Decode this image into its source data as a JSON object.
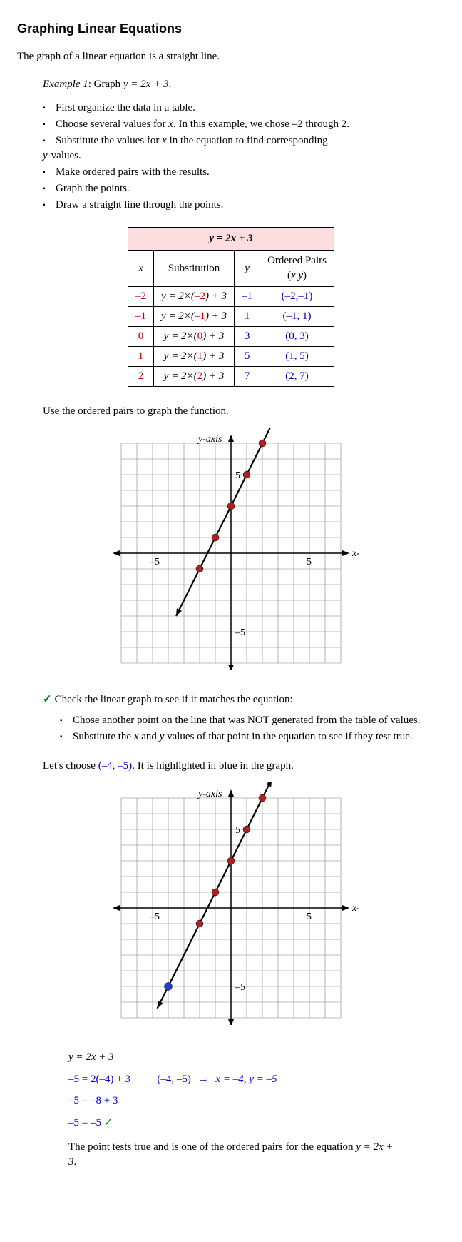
{
  "title": "Graphing Linear Equations",
  "intro": "The graph of a linear equation is a straight line.",
  "example": {
    "label": "Example 1",
    "text_prefix": ":  Graph ",
    "equation": "y = 2x + 3",
    "suffix": "."
  },
  "steps": [
    "First organize the data in a table.",
    "Choose several values for ",
    "Substitute the values for ",
    "Make ordered pairs with the results.",
    "Graph the points.",
    "Draw a straight line through the points."
  ],
  "step2_tail": ".  In this example, we chose –2 through 2.",
  "step3_mid": " in the equation to find corresponding ",
  "step3_tail": "-values.",
  "table": {
    "header_equation": "y = 2x + 3",
    "cols": [
      "x",
      "Substitution",
      "y",
      "Ordered Pairs",
      "(x y)"
    ],
    "rows": [
      {
        "x": "–2",
        "sub_pre": "y = 2×(",
        "sub_val": "–2",
        "sub_post": ") + 3",
        "y": "–1",
        "pair": "(–2,–1)"
      },
      {
        "x": "–1",
        "sub_pre": "y = 2×(",
        "sub_val": "–1",
        "sub_post": ") + 3",
        "y": "1",
        "pair": "(–1, 1)"
      },
      {
        "x": "0",
        "sub_pre": "y = 2×(",
        "sub_val": "0",
        "sub_post": ") + 3",
        "y": "3",
        "pair": "(0, 3)"
      },
      {
        "x": "1",
        "sub_pre": "y = 2×(",
        "sub_val": "1",
        "sub_post": ") + 3",
        "y": "5",
        "pair": "(1, 5)"
      },
      {
        "x": "2",
        "sub_pre": "y = 2×(",
        "sub_val": "2",
        "sub_post": ") + 3",
        "y": "7",
        "pair": "(2, 7)"
      }
    ]
  },
  "use_pairs_text": "Use the ordered pairs to graph the function.",
  "graph": {
    "xmin": -7,
    "xmax": 7,
    "ymin": -7,
    "ymax": 7,
    "cell": 22,
    "xlabel": "x-axis",
    "ylabel": "y-axis",
    "xtick_neg": "–5",
    "xtick_pos": "5",
    "ytick_neg": "–5",
    "ytick_pos": "5",
    "grid_color": "#808080",
    "axis_color": "#000000",
    "point_color": "#b02020",
    "line_color": "#000000",
    "extra_point_color": "#2040d0",
    "red_points": [
      [
        -2,
        -1
      ],
      [
        -1,
        1
      ],
      [
        0,
        3
      ],
      [
        1,
        5
      ],
      [
        2,
        7
      ]
    ],
    "line_from": [
      -3.5,
      -4
    ],
    "line_to": [
      2.8,
      8.6
    ],
    "extra_point": [
      -4,
      -5
    ]
  },
  "check_text": "Check the linear graph to see if it matches the equation:",
  "check_steps": {
    "s1": "Chose another point on the line that was NOT generated from the table of values.",
    "s2_a": "Substitute the ",
    "s2_b": " and ",
    "s2_c": " values of that point in the equation to see if they test true."
  },
  "lets_choose_pre": "Let's choose ",
  "lets_choose_pt": "(–4, –5)",
  "lets_choose_post": ".  It is highlighted in blue in the graph.",
  "verify": {
    "eq": "y = 2x + 3",
    "l1": "–5 = 2(–4) + 3",
    "pair": "(–4, –5)",
    "xy": "x = –4,  y = –5",
    "l2": "–5 = –8 + 3",
    "l3": "–5 = –5",
    "check": "✓"
  },
  "conclusion_a": "The point tests true and is one of the ordered pairs for the equation ",
  "conclusion_eq": "y = 2x + 3",
  "conclusion_b": "."
}
